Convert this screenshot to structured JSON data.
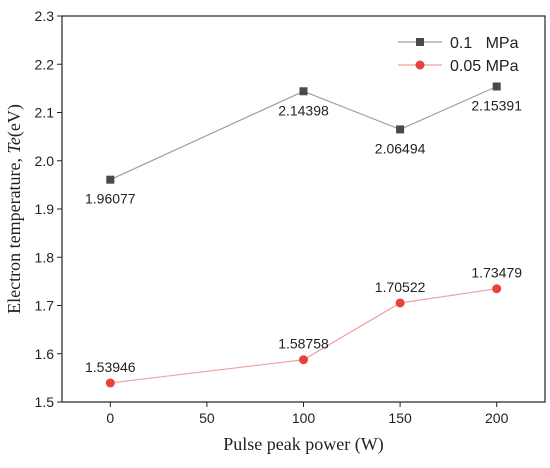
{
  "chart_data": {
    "type": "line",
    "xlabel": "Pulse peak power (W)",
    "ylabel_prefix": "Electron temperature, ",
    "ylabel_italic": "Te",
    "ylabel_suffix": "(eV)",
    "x_ticks": [
      "0",
      "50",
      "100",
      "150",
      "200"
    ],
    "y_ticks": [
      "1.5",
      "1.6",
      "1.7",
      "1.8",
      "1.9",
      "2.0",
      "2.1",
      "2.2",
      "2.3"
    ],
    "xlim": [
      -25,
      225
    ],
    "ylim": [
      1.5,
      2.3
    ],
    "grid": false,
    "legend_position": "top-right",
    "series": [
      {
        "name": "0.1   MPa",
        "marker": "square",
        "line_color": "#a0a0a0",
        "marker_color": "#4a4a4a",
        "x": [
          0,
          100,
          150,
          200
        ],
        "y": [
          1.96077,
          2.14398,
          2.06494,
          2.15391
        ],
        "labels": [
          "1.96077",
          "2.14398",
          "2.06494",
          "2.15391"
        ],
        "label_side": [
          "below",
          "below",
          "below",
          "below"
        ]
      },
      {
        "name": "0.05 MPa",
        "marker": "circle",
        "line_color": "#f2a0a0",
        "marker_color": "#e8413e",
        "x": [
          0,
          100,
          150,
          200
        ],
        "y": [
          1.53946,
          1.58758,
          1.70522,
          1.73479
        ],
        "labels": [
          "1.53946",
          "1.58758",
          "1.70522",
          "1.73479"
        ],
        "label_side": [
          "above",
          "above",
          "above",
          "above"
        ]
      }
    ]
  }
}
